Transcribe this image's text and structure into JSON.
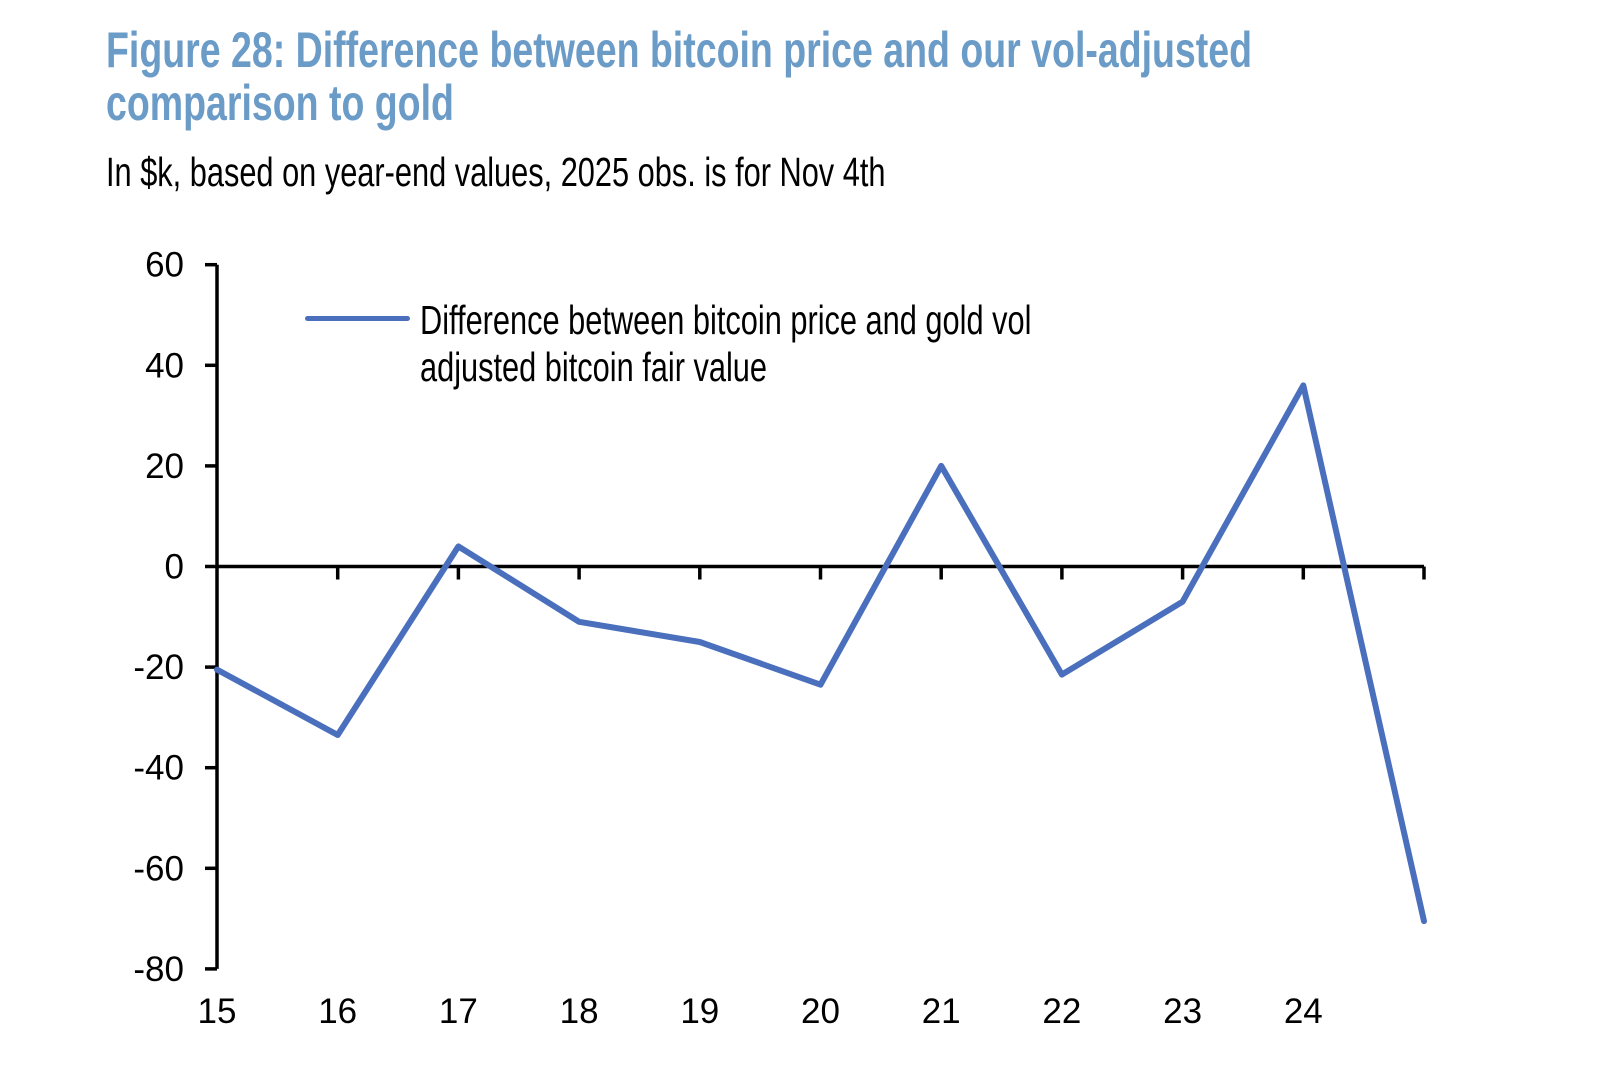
{
  "header": {
    "title_lines": [
      "Figure 28: Difference between bitcoin price and our vol-adjusted",
      "comparison to gold"
    ],
    "title_color": "#6B9BC7",
    "subtitle": "In $k, based on year-end values, 2025 obs. is for Nov 4th"
  },
  "legend": {
    "lines": [
      "Difference between bitcoin price and gold vol",
      "adjusted bitcoin fair value"
    ]
  },
  "chart_data": {
    "type": "line",
    "title": "Figure 28: Difference between bitcoin price and our vol-adjusted comparison to gold",
    "subtitle": "In $k, based on year-end values, 2025 obs. is for Nov 4th",
    "unit": "$k",
    "x": [
      2015,
      2016,
      2017,
      2018,
      2019,
      2020,
      2021,
      2022,
      2023,
      2024,
      2025
    ],
    "x_tick_labels": [
      "15",
      "16",
      "17",
      "18",
      "19",
      "20",
      "21",
      "22",
      "23",
      "24"
    ],
    "y_ticks": [
      60,
      40,
      20,
      0,
      -20,
      -40,
      -60,
      -80
    ],
    "ylim": [
      -80,
      60
    ],
    "grid": false,
    "legend_position": "inside-top-left",
    "axis_color": "#000000",
    "series": [
      {
        "name": "Difference between bitcoin price and gold vol adjusted bitcoin fair value",
        "color": "#4A6FBD",
        "values": [
          -20.5,
          -33.5,
          4,
          -11,
          -15,
          -23.5,
          20,
          -21.5,
          -7,
          36,
          -70.5
        ]
      }
    ]
  }
}
